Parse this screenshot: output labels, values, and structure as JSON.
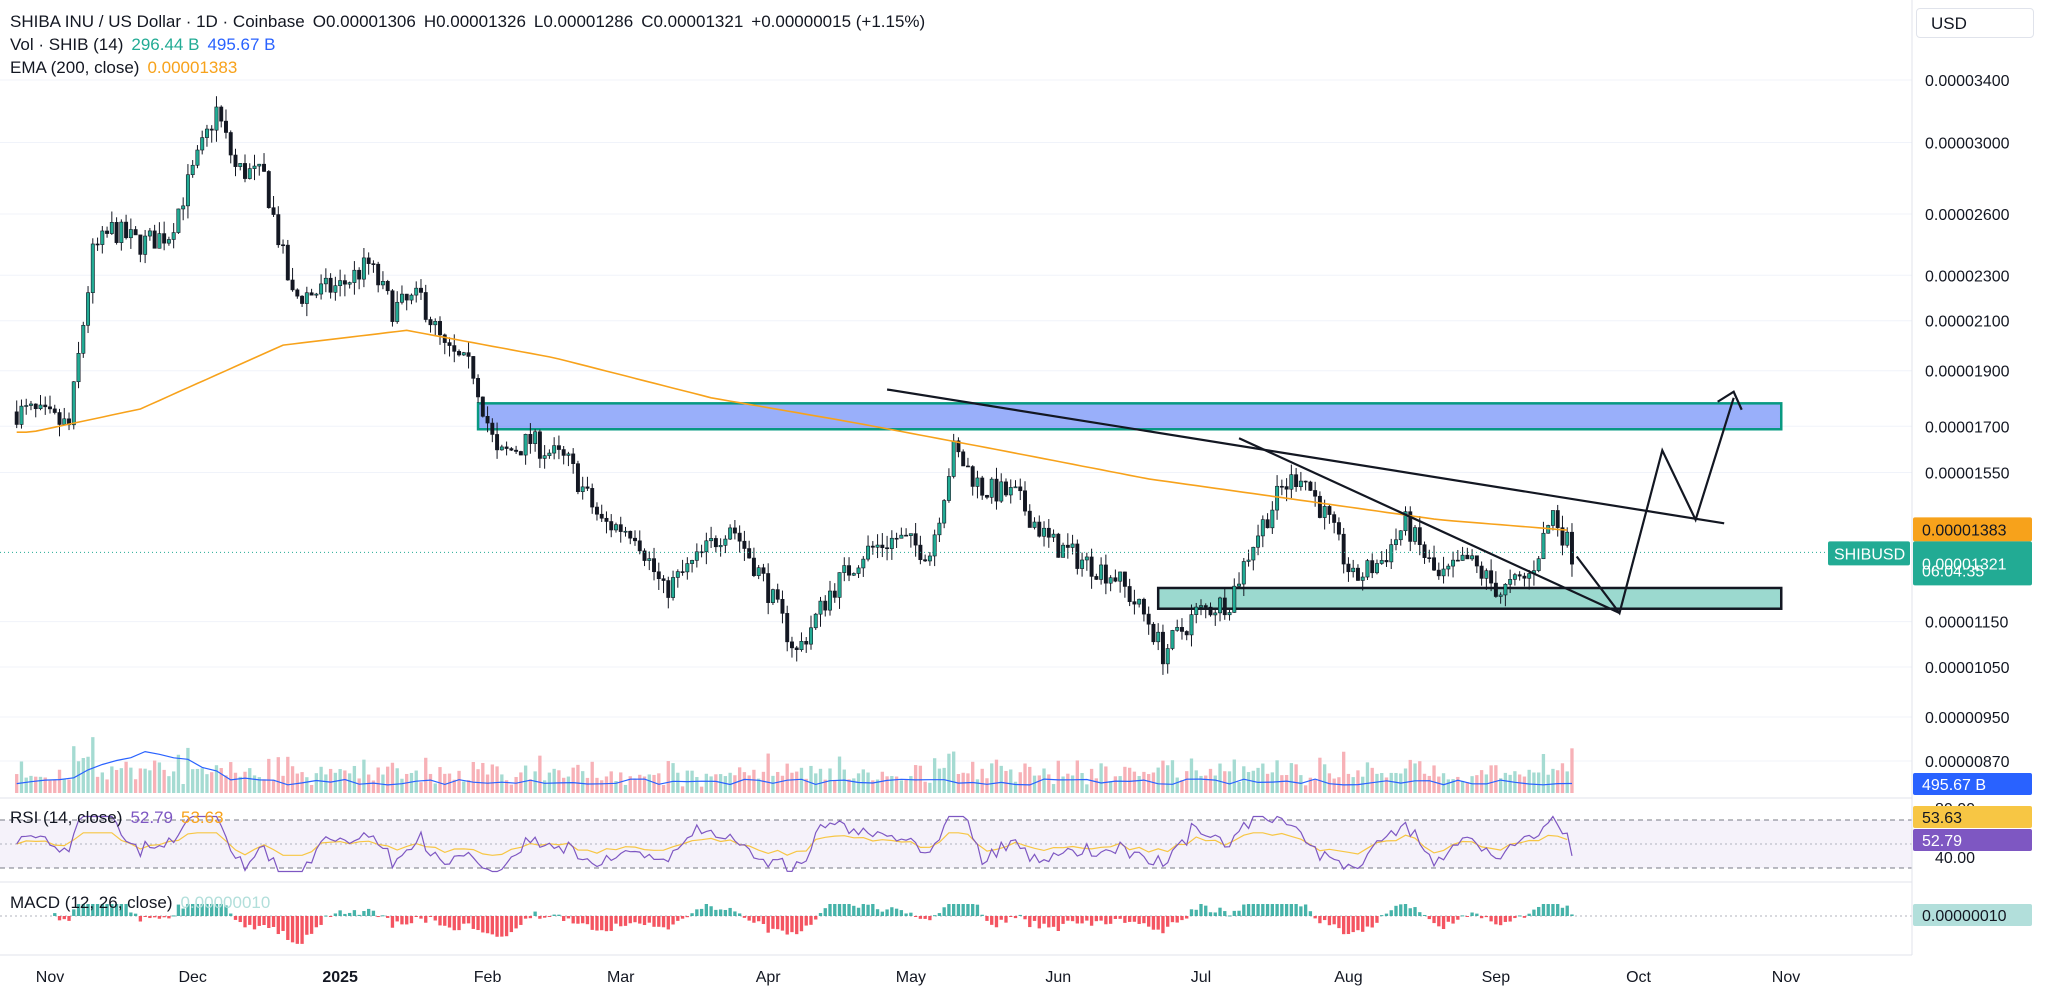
{
  "header": {
    "symbol": "SHIBA INU / US Dollar · 1D · Coinbase",
    "open": "O0.00001306",
    "high": "H0.00001326",
    "low": "L0.00001286",
    "close": "C0.00001321",
    "change": "+0.00000015 (+1.15%)",
    "vol_label": "Vol · SHIB (14)",
    "vol_value1": "296.44 B",
    "vol_value2": "495.67 B",
    "ema_label": "EMA (200, close)",
    "ema_value": "0.00001383",
    "currency": "USD"
  },
  "rsi": {
    "label": "RSI (14, close)",
    "value": "52.79",
    "ma": "53.63",
    "levels": [
      "40.00"
    ],
    "top_level": "80.00"
  },
  "macd": {
    "label": "MACD (12, 26, close)",
    "value": "0.00000010",
    "tag": "0.00000010"
  },
  "tags": {
    "ema": "0.00001383",
    "symbol": "SHIBUSD",
    "price": "0.00001321",
    "countdown": "06:04:35",
    "volume": "495.67 B",
    "rsi_ma": "53.63",
    "rsi": "52.79"
  },
  "colors": {
    "up": "#22ab94",
    "down": "#f23645",
    "ema": "#f7a21b",
    "resistance_zone": "#6f8ff5",
    "support_zone": "#7fd6c8",
    "zone_border": "#089981",
    "vol_ma": "#2962ff",
    "rsi": "#7e57c2",
    "rsi_ma": "#f7c644"
  },
  "chart_data": {
    "type": "candlestick",
    "title": "SHIBA INU / US Dollar · 1D · Coinbase",
    "y_scale": "log",
    "y_ticks": [
      "0.00003400",
      "0.00003000",
      "0.00002600",
      "0.00002300",
      "0.00002100",
      "0.00001900",
      "0.00001700",
      "0.00001550",
      "0.00001150",
      "0.00001050",
      "0.00000950",
      "0.00000870"
    ],
    "x_ticks": [
      "Nov",
      "Dec",
      "2025",
      "Feb",
      "Mar",
      "Apr",
      "May",
      "Jun",
      "Jul",
      "Aug",
      "Sep",
      "Oct",
      "Nov"
    ],
    "ylim": [
      8.2e-06,
      3.56e-05
    ],
    "close_path": [
      {
        "date": "2024-10-28",
        "close": 1.75e-05
      },
      {
        "date": "2024-11-05",
        "close": 1.7e-05
      },
      {
        "date": "2024-11-10",
        "close": 2.4e-05
      },
      {
        "date": "2024-11-14",
        "close": 2.52e-05
      },
      {
        "date": "2024-11-20",
        "close": 2.45e-05
      },
      {
        "date": "2024-11-26",
        "close": 2.5e-05
      },
      {
        "date": "2024-12-02",
        "close": 2.9e-05
      },
      {
        "date": "2024-12-06",
        "close": 3.2e-05
      },
      {
        "date": "2024-12-10",
        "close": 2.85e-05
      },
      {
        "date": "2024-12-16",
        "close": 2.8e-05
      },
      {
        "date": "2024-12-22",
        "close": 2.2e-05
      },
      {
        "date": "2025-01-01",
        "close": 2.25e-05
      },
      {
        "date": "2025-01-07",
        "close": 2.35e-05
      },
      {
        "date": "2025-01-12",
        "close": 2.15e-05
      },
      {
        "date": "2025-01-18",
        "close": 2.2e-05
      },
      {
        "date": "2025-01-23",
        "close": 1.98e-05
      },
      {
        "date": "2025-01-29",
        "close": 1.9e-05
      },
      {
        "date": "2025-02-03",
        "close": 1.6e-05
      },
      {
        "date": "2025-02-10",
        "close": 1.65e-05
      },
      {
        "date": "2025-02-18",
        "close": 1.58e-05
      },
      {
        "date": "2025-02-25",
        "close": 1.4e-05
      },
      {
        "date": "2025-03-04",
        "close": 1.38e-05
      },
      {
        "date": "2025-03-10",
        "close": 1.22e-05
      },
      {
        "date": "2025-03-17",
        "close": 1.3e-05
      },
      {
        "date": "2025-03-24",
        "close": 1.4e-05
      },
      {
        "date": "2025-03-31",
        "close": 1.25e-05
      },
      {
        "date": "2025-04-07",
        "close": 1.08e-05
      },
      {
        "date": "2025-04-14",
        "close": 1.22e-05
      },
      {
        "date": "2025-04-21",
        "close": 1.32e-05
      },
      {
        "date": "2025-04-28",
        "close": 1.36e-05
      },
      {
        "date": "2025-05-05",
        "close": 1.32e-05
      },
      {
        "date": "2025-05-10",
        "close": 1.62e-05
      },
      {
        "date": "2025-05-16",
        "close": 1.5e-05
      },
      {
        "date": "2025-05-23",
        "close": 1.48e-05
      },
      {
        "date": "2025-05-30",
        "close": 1.35e-05
      },
      {
        "date": "2025-06-06",
        "close": 1.3e-05
      },
      {
        "date": "2025-06-13",
        "close": 1.26e-05
      },
      {
        "date": "2025-06-20",
        "close": 1.15e-05
      },
      {
        "date": "2025-06-23",
        "close": 1.08e-05
      },
      {
        "date": "2025-06-30",
        "close": 1.17e-05
      },
      {
        "date": "2025-07-07",
        "close": 1.2e-05
      },
      {
        "date": "2025-07-12",
        "close": 1.35e-05
      },
      {
        "date": "2025-07-18",
        "close": 1.5e-05
      },
      {
        "date": "2025-07-22",
        "close": 1.55e-05
      },
      {
        "date": "2025-07-28",
        "close": 1.4e-05
      },
      {
        "date": "2025-08-02",
        "close": 1.25e-05
      },
      {
        "date": "2025-08-08",
        "close": 1.3e-05
      },
      {
        "date": "2025-08-13",
        "close": 1.4e-05
      },
      {
        "date": "2025-08-20",
        "close": 1.25e-05
      },
      {
        "date": "2025-08-26",
        "close": 1.3e-05
      },
      {
        "date": "2025-09-02",
        "close": 1.22e-05
      },
      {
        "date": "2025-09-08",
        "close": 1.26e-05
      },
      {
        "date": "2025-09-13",
        "close": 1.43e-05
      },
      {
        "date": "2025-09-17",
        "close": 1.32e-05
      }
    ],
    "ema200_path": [
      {
        "date": "2024-10-28",
        "value": 1.68e-05
      },
      {
        "date": "2024-11-20",
        "value": 1.76e-05
      },
      {
        "date": "2024-12-20",
        "value": 2e-05
      },
      {
        "date": "2025-01-15",
        "value": 2.06e-05
      },
      {
        "date": "2025-02-15",
        "value": 1.95e-05
      },
      {
        "date": "2025-03-20",
        "value": 1.8e-05
      },
      {
        "date": "2025-04-20",
        "value": 1.71e-05
      },
      {
        "date": "2025-05-20",
        "value": 1.62e-05
      },
      {
        "date": "2025-06-20",
        "value": 1.53e-05
      },
      {
        "date": "2025-07-20",
        "value": 1.47e-05
      },
      {
        "date": "2025-08-20",
        "value": 1.41e-05
      },
      {
        "date": "2025-09-17",
        "value": 1.38e-05
      }
    ],
    "zones": [
      {
        "name": "resistance",
        "from": "2025-01-30",
        "to": "2025-10-31",
        "low": 1.69e-05,
        "high": 1.78e-05
      },
      {
        "name": "support",
        "from": "2025-06-22",
        "to": "2025-10-31",
        "low": 1.18e-05,
        "high": 1.23e-05
      }
    ],
    "trendlines": [
      {
        "from": {
          "date": "2025-04-26",
          "price": 1.83e-05
        },
        "to": {
          "date": "2025-10-19",
          "price": 1.4e-05
        }
      },
      {
        "from": {
          "date": "2025-07-09",
          "price": 1.66e-05
        },
        "to": {
          "date": "2025-09-27",
          "price": 1.17e-05
        }
      }
    ],
    "projection": [
      {
        "date": "2025-09-18",
        "price": 1.31e-05
      },
      {
        "date": "2025-09-27",
        "price": 1.17e-05
      },
      {
        "date": "2025-10-06",
        "price": 1.62e-05
      },
      {
        "date": "2025-10-13",
        "price": 1.41e-05
      },
      {
        "date": "2025-10-21",
        "price": 1.8e-05
      }
    ],
    "volume_bars": [
      {
        "series": "Vol · SHIB (14)",
        "scale": "relative"
      }
    ],
    "rsi_series": {
      "name": "RSI (14, close)",
      "last": 52.79,
      "ma": 53.63
    },
    "macd_series": {
      "name": "MACD (12, 26, close)",
      "last": 1e-07
    }
  }
}
